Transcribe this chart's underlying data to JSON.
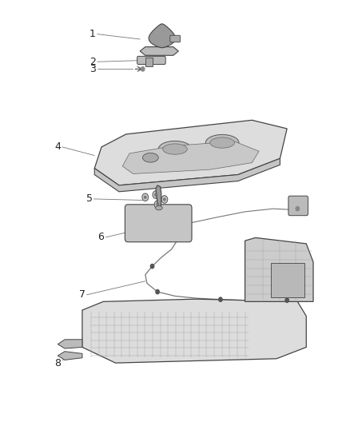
{
  "background_color": "#ffffff",
  "fig_width": 4.38,
  "fig_height": 5.33,
  "dpi": 100,
  "label_fontsize": 9,
  "label_color": "#222222",
  "line_color": "#777777",
  "part_edge_color": "#444444",
  "part_face_light": "#dddddd",
  "part_face_mid": "#cccccc",
  "part_face_dark": "#aaaaaa"
}
